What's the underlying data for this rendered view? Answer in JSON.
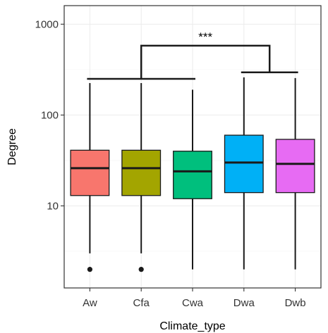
{
  "chart_data": {
    "type": "boxplot",
    "xlabel": "Climate_type",
    "ylabel": "Degree",
    "y_scale": "log10",
    "ylim": [
      1.25,
      1600
    ],
    "y_ticks": [
      10,
      100,
      1000
    ],
    "y_tick_labels": [
      "10",
      "100",
      "1000"
    ],
    "grid": true,
    "categories": [
      "Aw",
      "Cfa",
      "Cwa",
      "Dwa",
      "Dwb"
    ],
    "boxes": [
      {
        "category": "Aw",
        "color": "#F8766D",
        "q1": 13,
        "median": 26,
        "q3": 41,
        "whisker_low": 3,
        "whisker_high": 225,
        "outliers": [
          2
        ]
      },
      {
        "category": "Cfa",
        "color": "#A3A500",
        "q1": 13,
        "median": 26,
        "q3": 41,
        "whisker_low": 3,
        "whisker_high": 225,
        "outliers": [
          2
        ]
      },
      {
        "category": "Cwa",
        "color": "#00BF7D",
        "q1": 12,
        "median": 24,
        "q3": 40,
        "whisker_low": 2,
        "whisker_high": 190,
        "outliers": []
      },
      {
        "category": "Dwa",
        "color": "#00B0F6",
        "q1": 14,
        "median": 30,
        "q3": 60,
        "whisker_low": 2,
        "whisker_high": 260,
        "outliers": []
      },
      {
        "category": "Dwb",
        "color": "#E76BF3",
        "q1": 14,
        "median": 29,
        "q3": 54,
        "whisker_low": 2,
        "whisker_high": 255,
        "outliers": []
      }
    ],
    "significance": {
      "label": "***",
      "group_left": [
        "Aw",
        "Cfa",
        "Cwa"
      ],
      "group_right": [
        "Dwa",
        "Dwb"
      ],
      "bracket_left_y": 250,
      "bracket_right_y": 295,
      "bracket_top_y": 580
    }
  }
}
